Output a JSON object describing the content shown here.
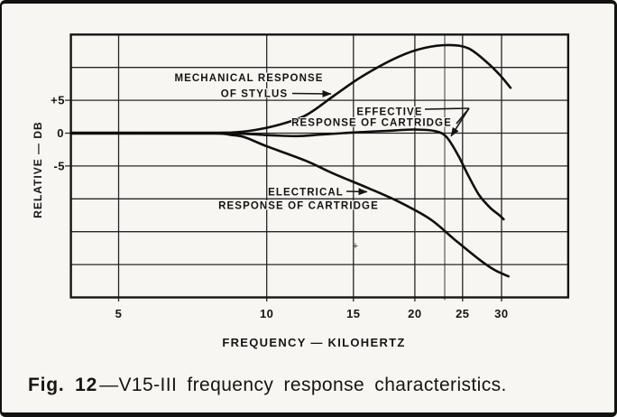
{
  "figure_caption": {
    "bold": "Fig. 12",
    "rest": "—V15-III frequency response characteristics."
  },
  "chart_data": {
    "type": "line",
    "title": "",
    "xlabel": "FREQUENCY — KILOHERTZ",
    "ylabel": "RELATIVE — DB",
    "x_scale": "log",
    "grid": true,
    "x_range_khz": [
      4,
      41
    ],
    "x_ticks": [
      5,
      10,
      15,
      20,
      25,
      30
    ],
    "x_tick_labels": [
      "5",
      "10",
      "15",
      "20",
      "25",
      "30"
    ],
    "x_extra_gridlines_khz": [
      23
    ],
    "y_range_db": [
      -25,
      15
    ],
    "y_grid_step_db": 5,
    "y_labeled_ticks_db": [
      5,
      0,
      -5
    ],
    "y_tick_labels": [
      "+5",
      "0",
      "-5"
    ],
    "series": [
      {
        "key": "mechanical",
        "name": "MECHANICAL RESPONSE OF STYLUS",
        "points": [
          [
            4,
            0
          ],
          [
            7,
            0
          ],
          [
            8.5,
            0.1
          ],
          [
            9.5,
            0.5
          ],
          [
            10.5,
            1.2
          ],
          [
            12,
            2.7
          ],
          [
            13.7,
            5.7
          ],
          [
            15.6,
            8.6
          ],
          [
            18.5,
            11.6
          ],
          [
            21,
            13
          ],
          [
            23.5,
            13.4
          ],
          [
            25.7,
            12.9
          ],
          [
            28,
            10.8
          ],
          [
            29.8,
            8.8
          ],
          [
            31.3,
            6.9
          ]
        ]
      },
      {
        "key": "effective",
        "name": "EFFECTIVE RESPONSE OF CARTRIDGE",
        "points": [
          [
            4,
            0
          ],
          [
            8,
            0
          ],
          [
            10,
            -0.3
          ],
          [
            11.5,
            -0.45
          ],
          [
            13,
            -0.2
          ],
          [
            15,
            0.1
          ],
          [
            17.5,
            0.35
          ],
          [
            20,
            0.55
          ],
          [
            22,
            0.3
          ],
          [
            23.2,
            -0.6
          ],
          [
            24.5,
            -3.4
          ],
          [
            25.7,
            -6.5
          ],
          [
            27,
            -9.4
          ],
          [
            28.4,
            -11.3
          ],
          [
            29.6,
            -12.4
          ],
          [
            30.3,
            -13.1
          ]
        ]
      },
      {
        "key": "electrical",
        "name": "ELECTRICAL RESPONSE OF CARTRIDGE",
        "points": [
          [
            4,
            0
          ],
          [
            7.5,
            0
          ],
          [
            8.5,
            -0.3
          ],
          [
            9,
            -0.6
          ],
          [
            10,
            -2
          ],
          [
            12,
            -4.2
          ],
          [
            13.7,
            -6.2
          ],
          [
            16,
            -8.3
          ],
          [
            18.5,
            -10.4
          ],
          [
            21.5,
            -13.1
          ],
          [
            24,
            -16.1
          ],
          [
            27,
            -19.2
          ],
          [
            29,
            -20.8
          ],
          [
            31,
            -21.8
          ]
        ]
      }
    ],
    "annotations": {
      "mechanical": {
        "line1": "MECHANICAL RESPONSE",
        "line2": "OF STYLUS"
      },
      "effective": {
        "line1": "EFFECTIVE",
        "line2": "RESPONSE OF CARTRIDGE"
      },
      "electrical": {
        "line1": "ELECTRICAL",
        "line2": "RESPONSE OF CARTRIDGE"
      }
    },
    "legend_position": "none"
  },
  "artifact_plus": "+"
}
